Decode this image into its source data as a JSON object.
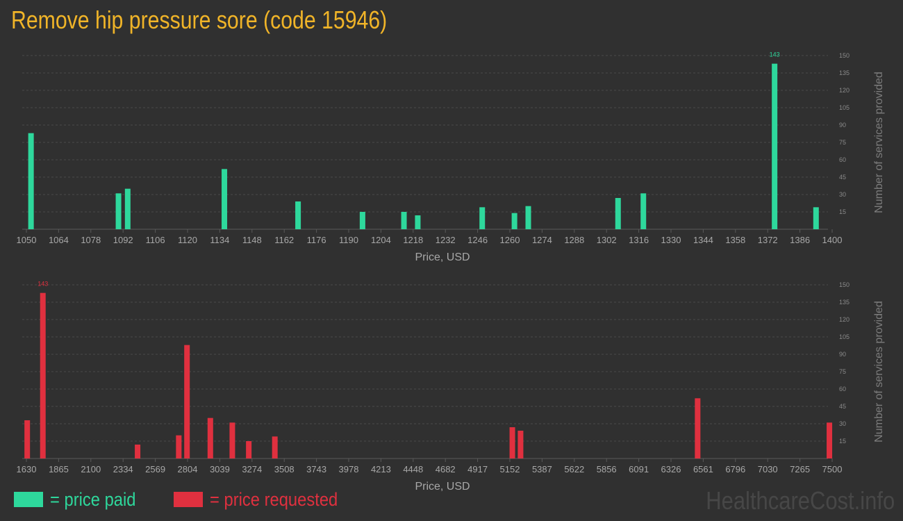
{
  "title": "Remove hip pressure sore (code 15946)",
  "colors": {
    "paid": "#2ed89c",
    "requested": "#e0303f",
    "title": "#f0b428"
  },
  "legend": {
    "paid_label": "= price paid",
    "requested_label": "= price requested"
  },
  "watermark": "HealthcareCost.info",
  "chart_data": [
    {
      "type": "bar",
      "name": "paid",
      "xlabel": "Price, USD",
      "ylabel": "Number of services provided",
      "x_range": [
        1050,
        1400
      ],
      "ylim": [
        0,
        150
      ],
      "y_ticks": [
        15,
        30,
        45,
        60,
        75,
        90,
        105,
        120,
        135,
        150
      ],
      "x_tick_labels": [
        "1050",
        "1064",
        "1078",
        "1092",
        "1106",
        "1120",
        "1134",
        "1148",
        "1162",
        "1176",
        "1190",
        "1204",
        "1218",
        "1232",
        "1246",
        "1260",
        "1274",
        "1288",
        "1302",
        "1316",
        "1330",
        "1344",
        "1358",
        "1372",
        "1386",
        "1400"
      ],
      "grid": true,
      "max_label": "143",
      "color": "#2ed89c",
      "points": [
        {
          "x": 1052,
          "y": 83
        },
        {
          "x": 1090,
          "y": 31
        },
        {
          "x": 1094,
          "y": 35
        },
        {
          "x": 1136,
          "y": 52
        },
        {
          "x": 1168,
          "y": 24
        },
        {
          "x": 1196,
          "y": 15
        },
        {
          "x": 1214,
          "y": 15
        },
        {
          "x": 1220,
          "y": 12
        },
        {
          "x": 1248,
          "y": 19
        },
        {
          "x": 1262,
          "y": 14
        },
        {
          "x": 1268,
          "y": 20
        },
        {
          "x": 1307,
          "y": 27
        },
        {
          "x": 1318,
          "y": 31
        },
        {
          "x": 1375,
          "y": 143
        },
        {
          "x": 1393,
          "y": 19
        }
      ]
    },
    {
      "type": "bar",
      "name": "requested",
      "xlabel": "Price, USD",
      "ylabel": "Number of services provided",
      "x_range": [
        1630,
        7500
      ],
      "ylim": [
        0,
        150
      ],
      "y_ticks": [
        15,
        30,
        45,
        60,
        75,
        90,
        105,
        120,
        135,
        150
      ],
      "x_tick_labels": [
        "1630",
        "1865",
        "2100",
        "2334",
        "2569",
        "2804",
        "3039",
        "3274",
        "3508",
        "3743",
        "3978",
        "4213",
        "4448",
        "4682",
        "4917",
        "5152",
        "5387",
        "5622",
        "5856",
        "6091",
        "6326",
        "6561",
        "6796",
        "7030",
        "7265",
        "7500"
      ],
      "grid": true,
      "max_label": "143",
      "color": "#e0303f",
      "points": [
        {
          "x": 1636,
          "y": 33
        },
        {
          "x": 1750,
          "y": 143
        },
        {
          "x": 2440,
          "y": 12
        },
        {
          "x": 2740,
          "y": 20
        },
        {
          "x": 2800,
          "y": 98
        },
        {
          "x": 2970,
          "y": 35
        },
        {
          "x": 3130,
          "y": 31
        },
        {
          "x": 3250,
          "y": 15
        },
        {
          "x": 3440,
          "y": 19
        },
        {
          "x": 5170,
          "y": 27
        },
        {
          "x": 5230,
          "y": 24
        },
        {
          "x": 6520,
          "y": 52
        },
        {
          "x": 7480,
          "y": 31
        }
      ]
    }
  ]
}
